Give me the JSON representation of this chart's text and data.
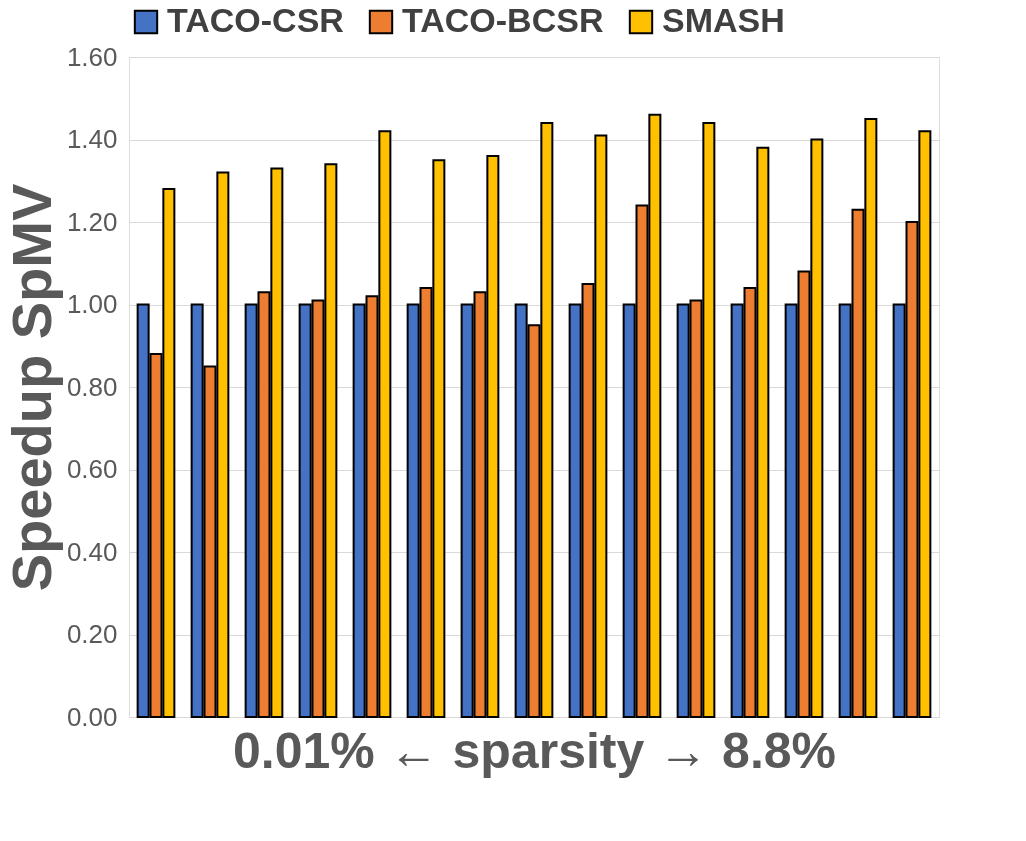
{
  "chart_data": {
    "type": "bar",
    "xlabel": "0.01% ← sparsity → 8.8%",
    "ylabel": "Speedup SpMV",
    "categories": [
      null,
      null,
      null,
      null,
      null,
      null,
      null,
      null,
      null,
      null,
      null,
      null,
      null,
      null,
      null
    ],
    "series": [
      {
        "name": "TACO-CSR",
        "color": "#4472c4",
        "values": [
          1.0,
          1.0,
          1.0,
          1.0,
          1.0,
          1.0,
          1.0,
          1.0,
          1.0,
          1.0,
          1.0,
          1.0,
          1.0,
          1.0,
          1.0
        ]
      },
      {
        "name": "TACO-BCSR",
        "color": "#ed7d31",
        "values": [
          0.88,
          0.85,
          1.03,
          1.01,
          1.02,
          1.04,
          1.03,
          0.95,
          1.05,
          1.24,
          1.01,
          1.04,
          1.08,
          1.23,
          1.2
        ]
      },
      {
        "name": "SMASH",
        "color": "#ffc000",
        "values": [
          1.28,
          1.32,
          1.33,
          1.34,
          1.42,
          1.35,
          1.36,
          1.44,
          1.41,
          1.46,
          1.44,
          1.38,
          1.4,
          1.45,
          1.42
        ]
      }
    ],
    "ylim": [
      0,
      1.6
    ],
    "yticks": [
      {
        "value": 0,
        "label": "0.00"
      },
      {
        "value": 0.2,
        "label": "0.20"
      },
      {
        "value": 0.4,
        "label": "0.40"
      },
      {
        "value": 0.6,
        "label": "0.60"
      },
      {
        "value": 0.8,
        "label": "0.80"
      },
      {
        "value": 1.0,
        "label": "1.00"
      },
      {
        "value": 1.2,
        "label": "1.20"
      },
      {
        "value": 1.4,
        "label": "1.40"
      },
      {
        "value": 1.6,
        "label": "1.60"
      }
    ],
    "grid": "y",
    "legend": "top",
    "tick_labels": "y"
  }
}
